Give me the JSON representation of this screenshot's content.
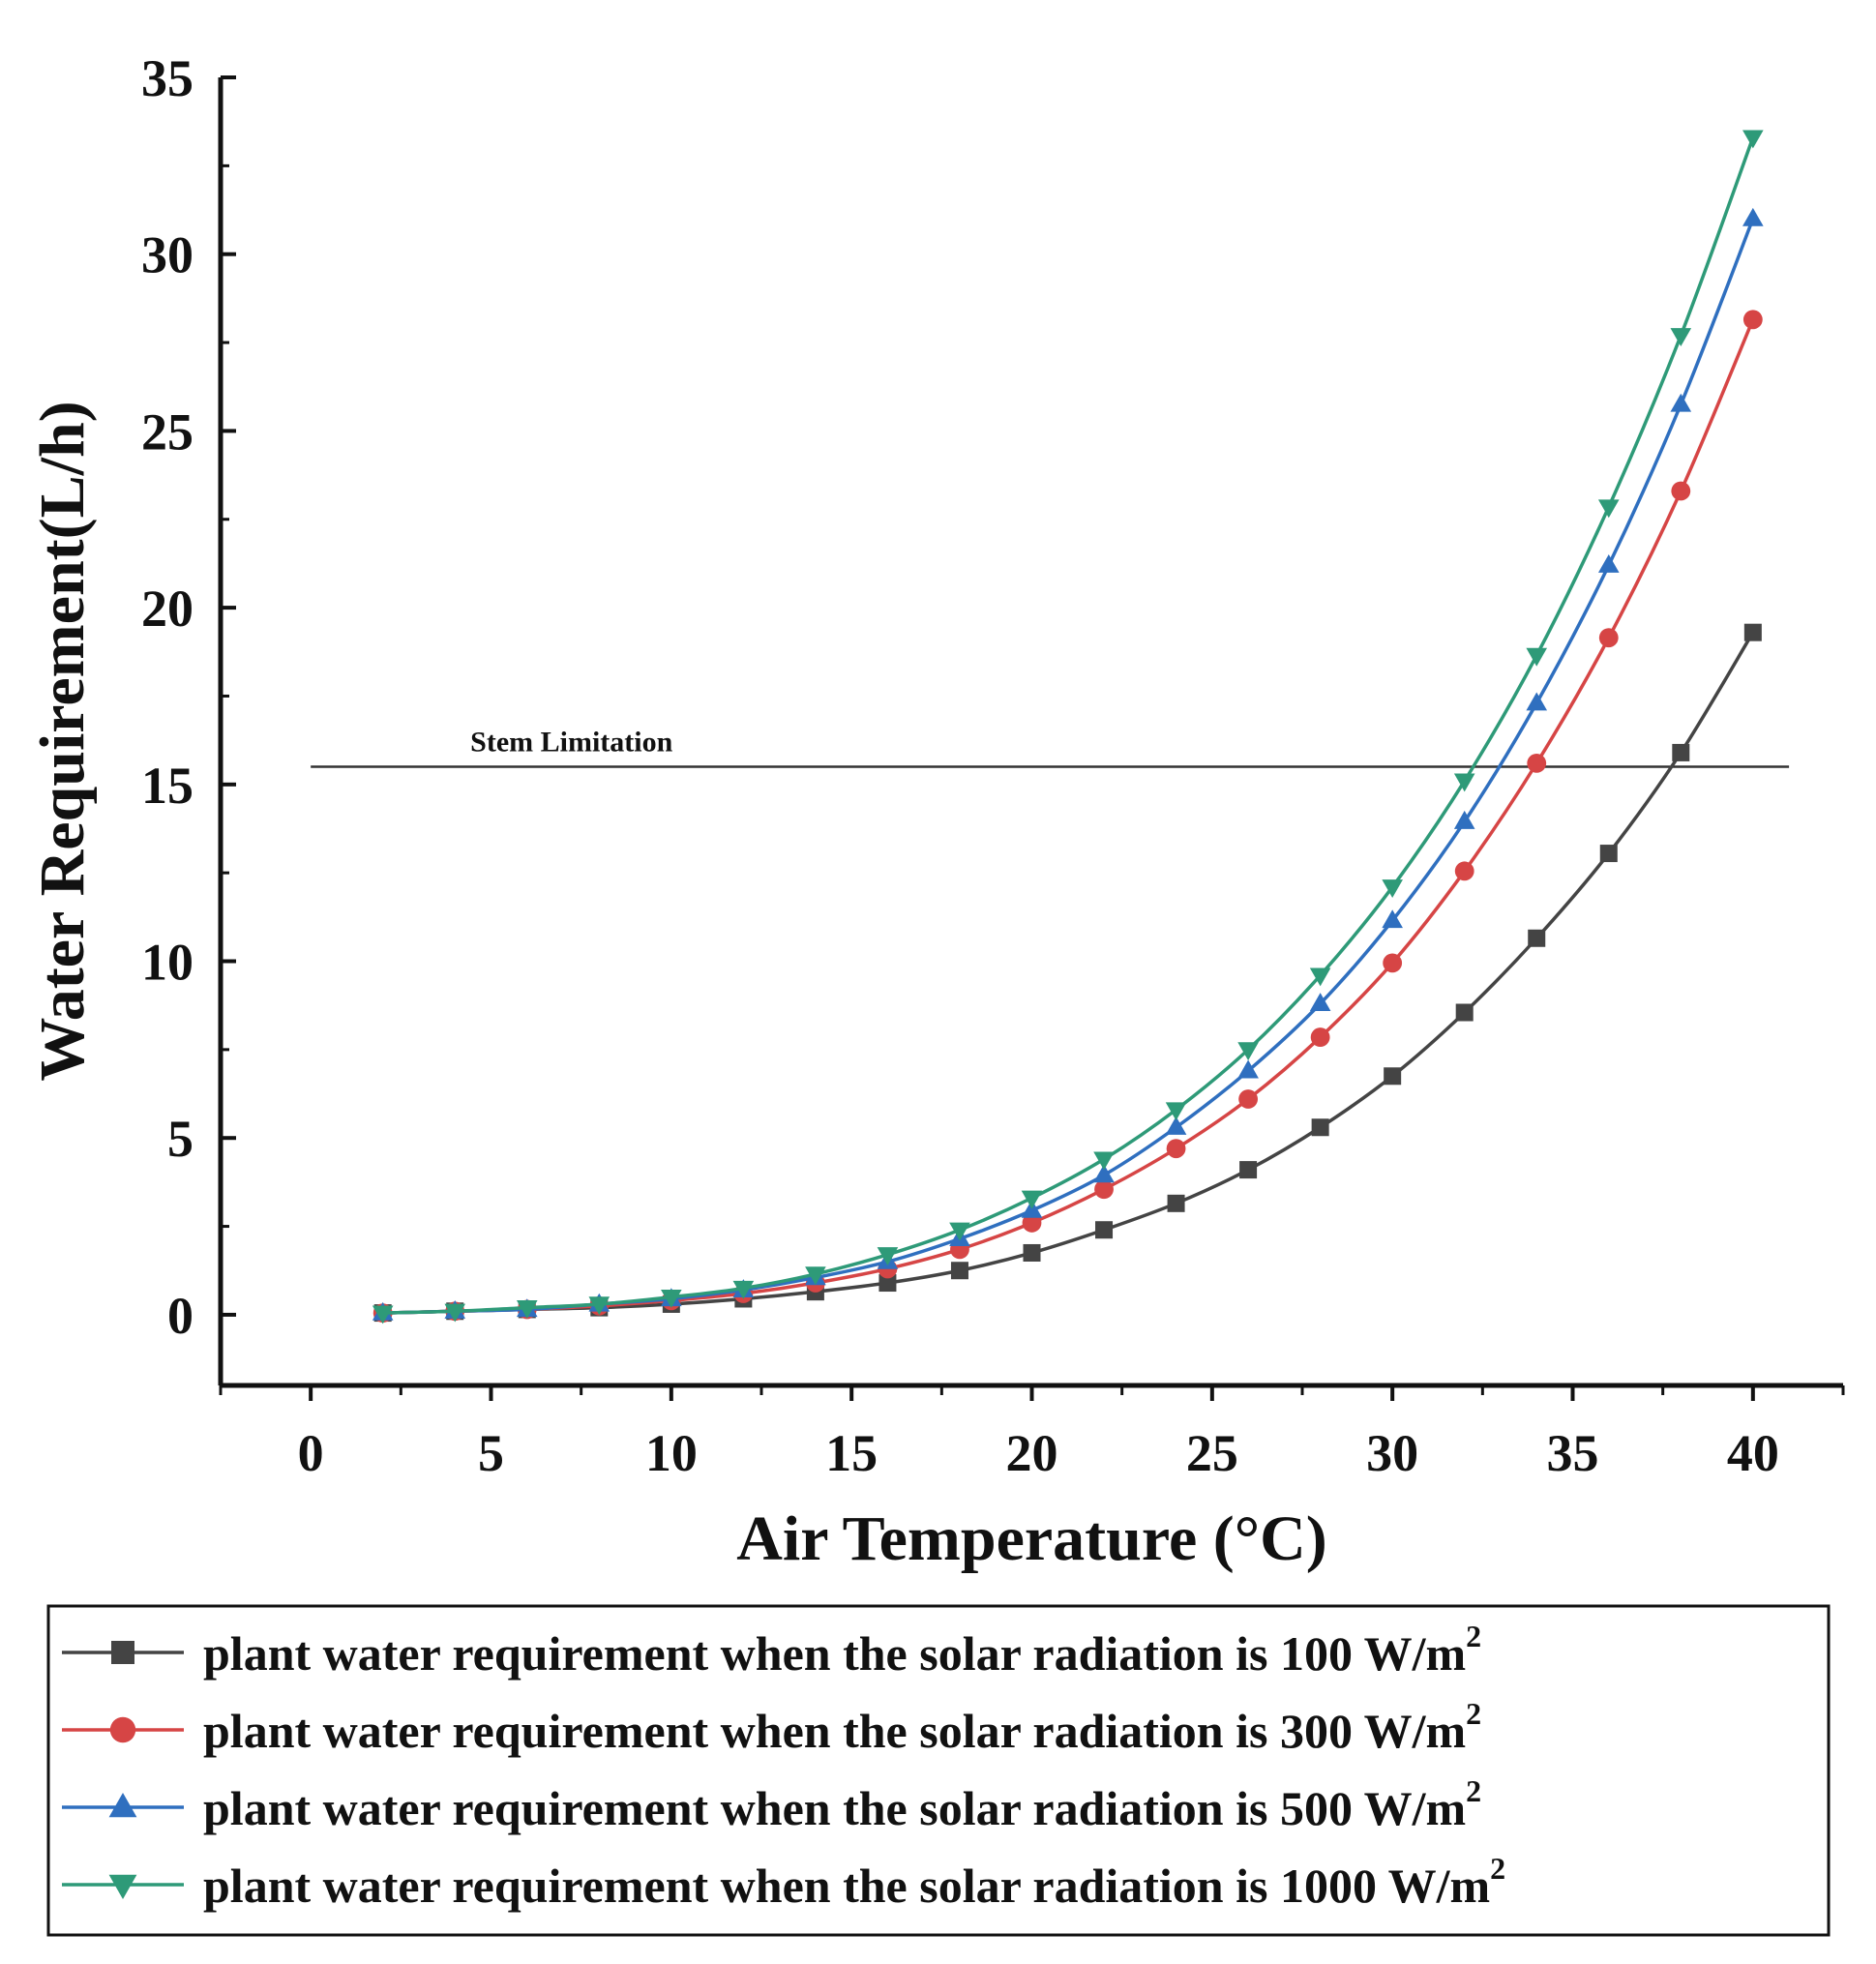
{
  "chart_data": {
    "type": "line",
    "title": "",
    "xlabel": "Air Temperature (°C)",
    "ylabel": "Water Requirement(L/h)",
    "xlim": [
      -2.5,
      42.5
    ],
    "ylim": [
      -2,
      35
    ],
    "xticks": [
      0,
      5,
      10,
      15,
      20,
      25,
      30,
      35,
      40
    ],
    "yticks": [
      0,
      5,
      10,
      15,
      20,
      25,
      30,
      35
    ],
    "x": [
      2,
      4,
      6,
      8,
      10,
      12,
      14,
      16,
      18,
      20,
      22,
      24,
      26,
      28,
      30,
      32,
      34,
      36,
      38,
      40
    ],
    "series": [
      {
        "name": "plant water requirement when the solar radiation is 100",
        "unit": "W/m",
        "unit_sup": "2",
        "color": "#444444",
        "marker": "square",
        "values": [
          0.05,
          0.1,
          0.15,
          0.2,
          0.3,
          0.45,
          0.65,
          0.9,
          1.25,
          1.75,
          2.4,
          3.15,
          4.1,
          5.3,
          6.75,
          8.55,
          10.65,
          13.05,
          15.9,
          19.3
        ]
      },
      {
        "name": "plant water requirement when the solar radiation is 300",
        "unit": "W/m",
        "unit_sup": "2",
        "color": "#d64545",
        "marker": "circle",
        "values": [
          0.05,
          0.1,
          0.15,
          0.25,
          0.4,
          0.6,
          0.9,
          1.3,
          1.85,
          2.6,
          3.55,
          4.7,
          6.1,
          7.85,
          9.95,
          12.55,
          15.6,
          19.15,
          23.3,
          28.15
        ]
      },
      {
        "name": "plant water requirement when the solar radiation is 500",
        "unit": "W/m",
        "unit_sup": "2",
        "color": "#2f6fbf",
        "marker": "triangle-up",
        "values": [
          0.05,
          0.1,
          0.15,
          0.3,
          0.45,
          0.7,
          1.05,
          1.5,
          2.15,
          2.95,
          3.95,
          5.3,
          6.9,
          8.8,
          11.15,
          13.95,
          17.3,
          21.2,
          25.75,
          31.0
        ]
      },
      {
        "name": "plant water requirement when the solar radiation is 1000",
        "unit": "W/m",
        "unit_sup": "2",
        "color": "#2e9a78",
        "marker": "triangle-down",
        "values": [
          0.05,
          0.1,
          0.2,
          0.3,
          0.5,
          0.75,
          1.15,
          1.7,
          2.4,
          3.3,
          4.4,
          5.8,
          7.5,
          9.6,
          12.1,
          15.1,
          18.65,
          22.85,
          27.7,
          33.3
        ]
      }
    ],
    "reference_line": {
      "label": "Stem Limitation",
      "y": 15.5,
      "x_start": 0,
      "x_end": 41
    },
    "legend_position": "bottom",
    "grid": false
  }
}
